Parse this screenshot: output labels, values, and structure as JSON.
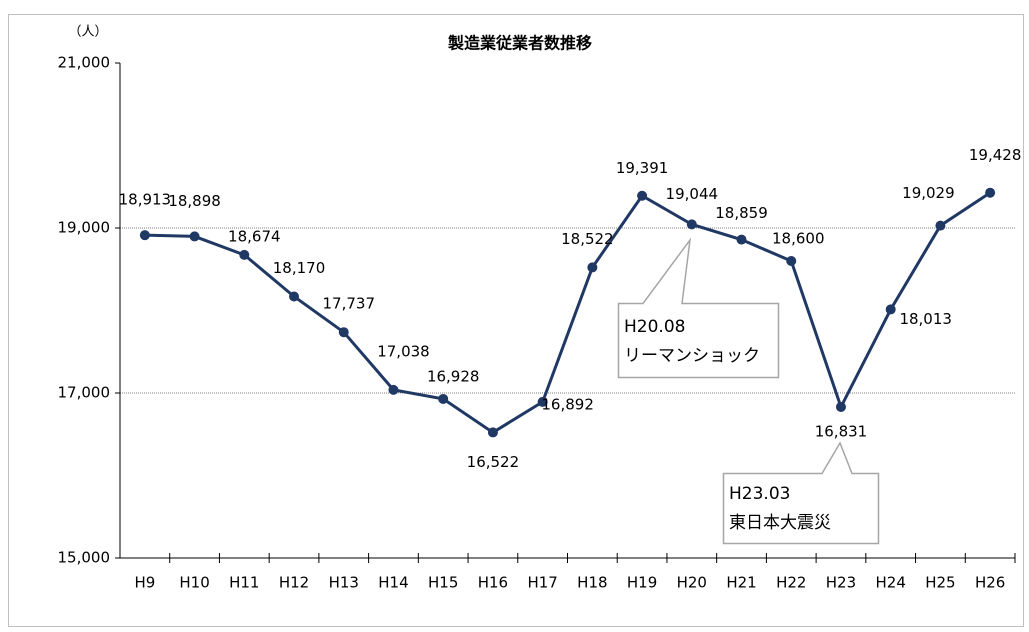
{
  "chart_data": {
    "type": "line",
    "title": "製造業従業者数推移",
    "y_label": "（人）",
    "categories": [
      "H9",
      "H10",
      "H11",
      "H12",
      "H13",
      "H14",
      "H15",
      "H16",
      "H17",
      "H18",
      "H19",
      "H20",
      "H21",
      "H22",
      "H23",
      "H24",
      "H25",
      "H26"
    ],
    "series": [
      {
        "name": "製造業従業者数",
        "color": "#203864",
        "values": [
          18913,
          18898,
          18674,
          18170,
          17737,
          17038,
          16928,
          16522,
          16892,
          18522,
          19391,
          19044,
          18859,
          18600,
          16831,
          18013,
          19029,
          19428
        ],
        "value_labels": [
          "18,913",
          "18,898",
          "18,674",
          "18,170",
          "17,737",
          "17,038",
          "16,928",
          "16,522",
          "16,892",
          "18,522",
          "19,391",
          "19,044",
          "18,859",
          "18,600",
          "16,831",
          "18,013",
          "19,029",
          "19,428"
        ]
      }
    ],
    "ylim": [
      15000,
      21000
    ],
    "yticks": [
      {
        "value": 15000,
        "label": "15,000"
      },
      {
        "value": 17000,
        "label": "17,000"
      },
      {
        "value": 19000,
        "label": "19,000"
      },
      {
        "value": 21000,
        "label": "21,000"
      }
    ],
    "grid": true,
    "annotations": [
      {
        "lines": [
          "H20.08",
          "リーマンショック"
        ]
      },
      {
        "lines": [
          "H23.03",
          "東日本大震災"
        ]
      }
    ]
  }
}
